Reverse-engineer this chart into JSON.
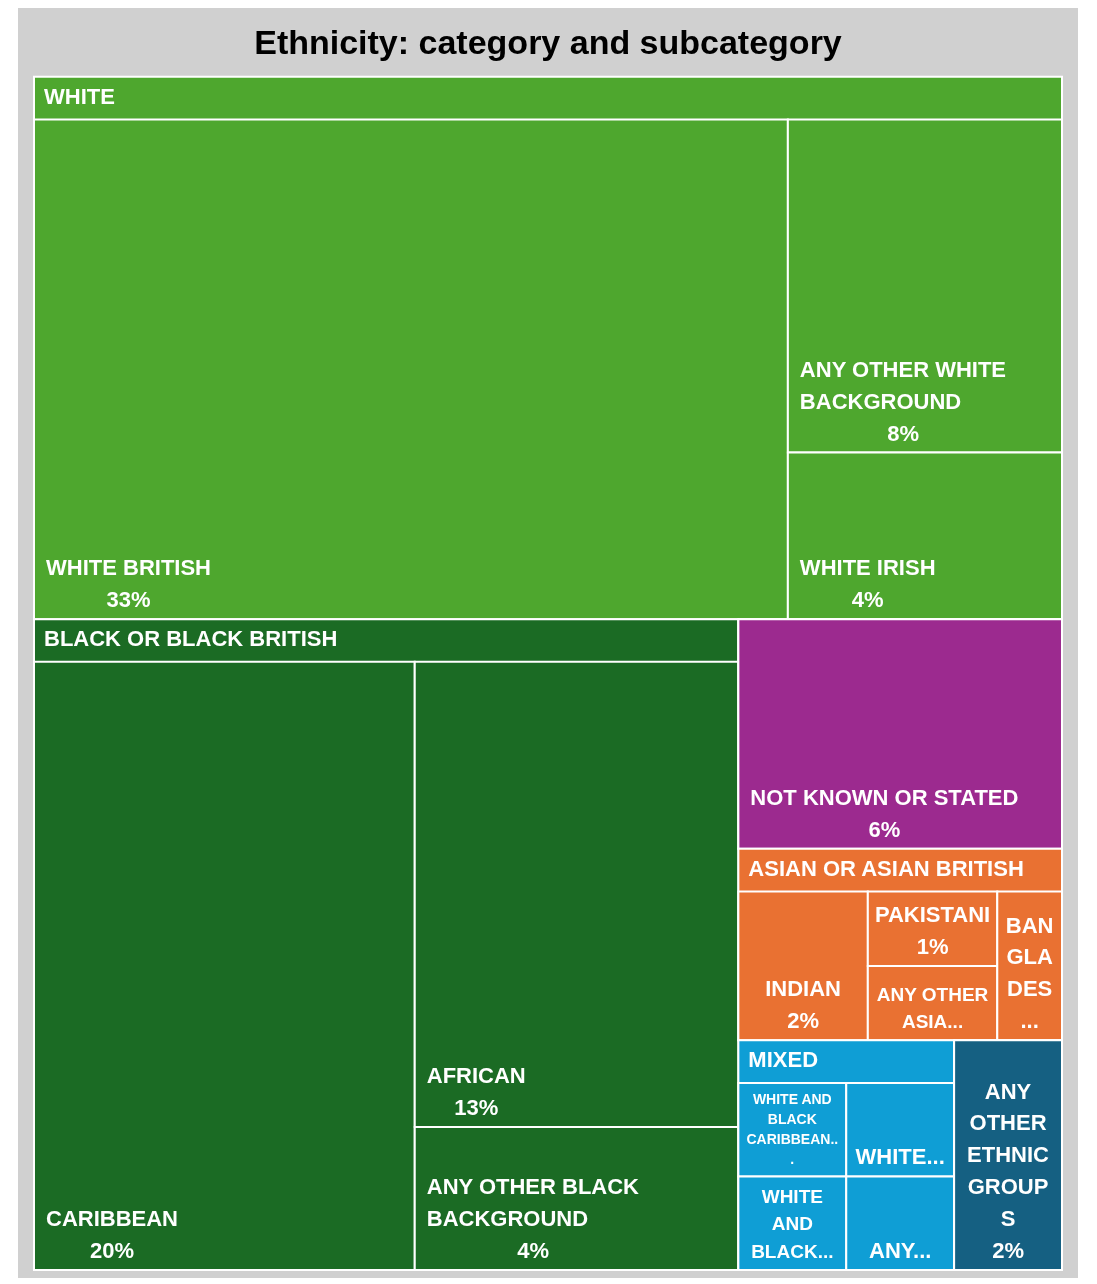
{
  "chart_data": {
    "type": "other",
    "title": "Ethnicity: category and subcategory",
    "categories": [
      "WHITE BRITISH",
      "ANY OTHER WHITE BACKGROUND",
      "WHITE IRISH",
      "CARIBBEAN",
      "AFRICAN",
      "ANY OTHER BLACK BACKGROUND",
      "NOT KNOWN OR STATED",
      "INDIAN",
      "PAKISTANI",
      "ANY OTHER ASIA...",
      "BANGLADES...",
      "WHITE AND BLACK CARIBBEAN...",
      "WHITE AND BLACK...",
      "WHITE...",
      "ANY...",
      "ANY OTHER ETHNIC GROUPS"
    ],
    "values": [
      33,
      8,
      4,
      20,
      13,
      4,
      6,
      2,
      1,
      null,
      null,
      null,
      null,
      null,
      null,
      2
    ],
    "value_labels": [
      "33%",
      "8%",
      "4%",
      "20%",
      "13%",
      "4%",
      "6%",
      "2%",
      "1%",
      null,
      null,
      null,
      null,
      null,
      null,
      "2%"
    ],
    "colors": [
      "#4ea72e",
      "#4ea72e",
      "#4ea72e",
      "#1b6b24",
      "#1b6b24",
      "#1b6b24",
      "#9c2a8f",
      "#e97132",
      "#e97132",
      "#e97132",
      "#e97132",
      "#0f9ed5",
      "#0f9ed5",
      "#0f9ed5",
      "#0f9ed5",
      "#156082"
    ],
    "annotations": [
      {
        "text": "WHITE",
        "x": "WHITE BRITISH"
      },
      {
        "text": "BLACK OR BLACK BRITISH",
        "x": "CARIBBEAN"
      },
      {
        "text": "ASIAN OR ASIAN BRITISH",
        "x": "INDIAN"
      },
      {
        "text": "MIXED",
        "x": "WHITE AND BLACK CARIBBEAN..."
      }
    ]
  }
}
